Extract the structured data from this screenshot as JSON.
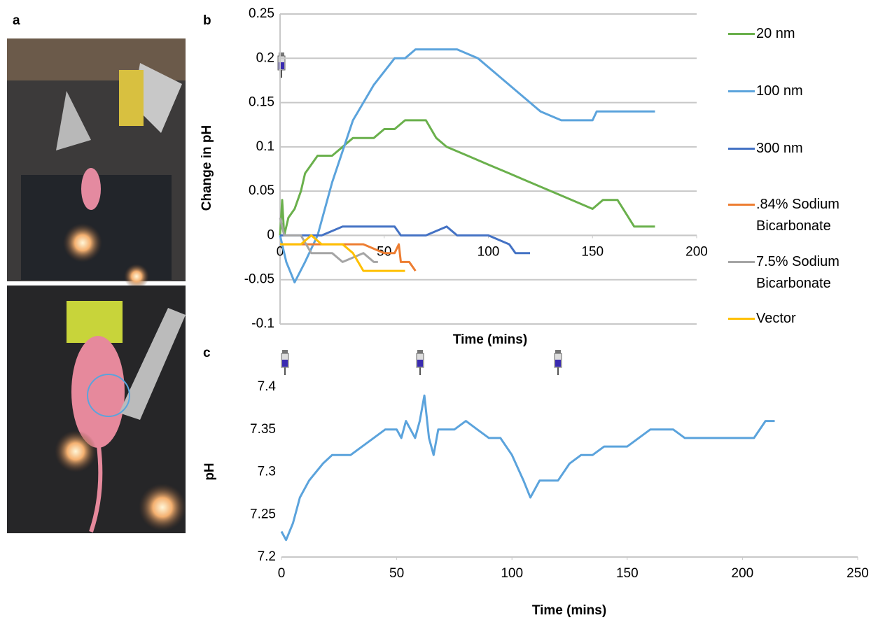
{
  "photo": {
    "label": "a"
  },
  "chart_data": [
    {
      "type": "line",
      "label": "b",
      "x_label": "Time (mins)",
      "y_label": "Change in pH",
      "xlim": [
        0,
        200
      ],
      "xticks": [
        0,
        50,
        100,
        150,
        200
      ],
      "ylim": [
        -0.1,
        0.25
      ],
      "yticks": [
        -0.1,
        -0.05,
        0,
        0.05,
        0.1,
        0.15,
        0.2,
        0.25
      ],
      "grid": true,
      "legend": "right",
      "series": [
        {
          "name": "20 nm",
          "color": "#6ab04c",
          "x": [
            0,
            1,
            2,
            4,
            7,
            10,
            12,
            15,
            18,
            25,
            30,
            35,
            45,
            50,
            55,
            60,
            70,
            75,
            80,
            90,
            100,
            110,
            120,
            130,
            140,
            150,
            155,
            162,
            170,
            180
          ],
          "values": [
            0,
            0.04,
            0,
            0.02,
            0.03,
            0.05,
            0.07,
            0.08,
            0.09,
            0.09,
            0.1,
            0.11,
            0.11,
            0.12,
            0.12,
            0.13,
            0.13,
            0.11,
            0.1,
            0.09,
            0.08,
            0.07,
            0.06,
            0.05,
            0.04,
            0.03,
            0.04,
            0.04,
            0.01,
            0.01
          ]
        },
        {
          "name": "100 nm",
          "color": "#5ba3dc",
          "x": [
            0,
            3,
            7,
            12,
            18,
            25,
            35,
            45,
            55,
            60,
            65,
            85,
            95,
            105,
            115,
            125,
            135,
            150,
            152,
            180
          ],
          "values": [
            0,
            -0.03,
            -0.053,
            -0.03,
            0,
            0.06,
            0.13,
            0.17,
            0.2,
            0.2,
            0.21,
            0.21,
            0.2,
            0.18,
            0.16,
            0.14,
            0.13,
            0.13,
            0.14,
            0.14
          ]
        },
        {
          "name": "300 nm",
          "color": "#4472c4",
          "x": [
            0,
            10,
            20,
            30,
            50,
            55,
            58,
            70,
            80,
            85,
            100,
            110,
            113,
            120
          ],
          "values": [
            0,
            0,
            0,
            0.01,
            0.01,
            0.01,
            0,
            0,
            0.01,
            0,
            0,
            -0.01,
            -0.02,
            -0.02
          ]
        },
        {
          "name": ".84% Sodium Bicarbonate",
          "color": "#ed7d31",
          "x": [
            0,
            20,
            40,
            50,
            55,
            57,
            58,
            62,
            65
          ],
          "values": [
            -0.01,
            -0.01,
            -0.01,
            -0.02,
            -0.02,
            -0.01,
            -0.03,
            -0.03,
            -0.04
          ]
        },
        {
          "name": "7.5% Sodium Bicarbonate",
          "color": "#a5a5a5",
          "x": [
            0,
            2,
            10,
            15,
            25,
            30,
            40,
            45,
            47
          ],
          "values": [
            0.02,
            0,
            0,
            -0.02,
            -0.02,
            -0.03,
            -0.02,
            -0.03,
            -0.03
          ]
        },
        {
          "name": "Vector",
          "color": "#ffc000",
          "x": [
            0,
            10,
            15,
            20,
            30,
            35,
            40,
            50,
            60
          ],
          "values": [
            -0.01,
            -0.01,
            0,
            -0.01,
            -0.01,
            -0.02,
            -0.04,
            -0.04,
            -0.04
          ]
        }
      ]
    },
    {
      "type": "line",
      "label": "c",
      "x_label": "Time (mins)",
      "y_label": "pH",
      "xlim": [
        0,
        250
      ],
      "xticks": [
        0,
        50,
        100,
        150,
        200,
        250
      ],
      "ylim": [
        7.2,
        7.4
      ],
      "yticks": [
        7.2,
        7.25,
        7.3,
        7.35,
        7.4
      ],
      "grid": false,
      "series": [
        {
          "name": "pH",
          "color": "#5ba3dc",
          "x": [
            0,
            2,
            5,
            8,
            12,
            15,
            18,
            22,
            30,
            35,
            40,
            45,
            50,
            52,
            54,
            56,
            58,
            60,
            62,
            64,
            66,
            68,
            75,
            80,
            85,
            90,
            95,
            100,
            105,
            108,
            112,
            120,
            125,
            130,
            135,
            140,
            150,
            155,
            160,
            170,
            175,
            185,
            190,
            195,
            205,
            210,
            214
          ],
          "values": [
            7.23,
            7.22,
            7.24,
            7.27,
            7.29,
            7.3,
            7.31,
            7.32,
            7.32,
            7.33,
            7.34,
            7.35,
            7.35,
            7.34,
            7.36,
            7.35,
            7.34,
            7.36,
            7.39,
            7.34,
            7.32,
            7.35,
            7.35,
            7.36,
            7.35,
            7.34,
            7.34,
            7.32,
            7.29,
            7.27,
            7.29,
            7.29,
            7.31,
            7.32,
            7.32,
            7.33,
            7.33,
            7.34,
            7.35,
            7.35,
            7.34,
            7.34,
            7.34,
            7.34,
            7.34,
            7.36,
            7.36
          ]
        }
      ]
    }
  ]
}
